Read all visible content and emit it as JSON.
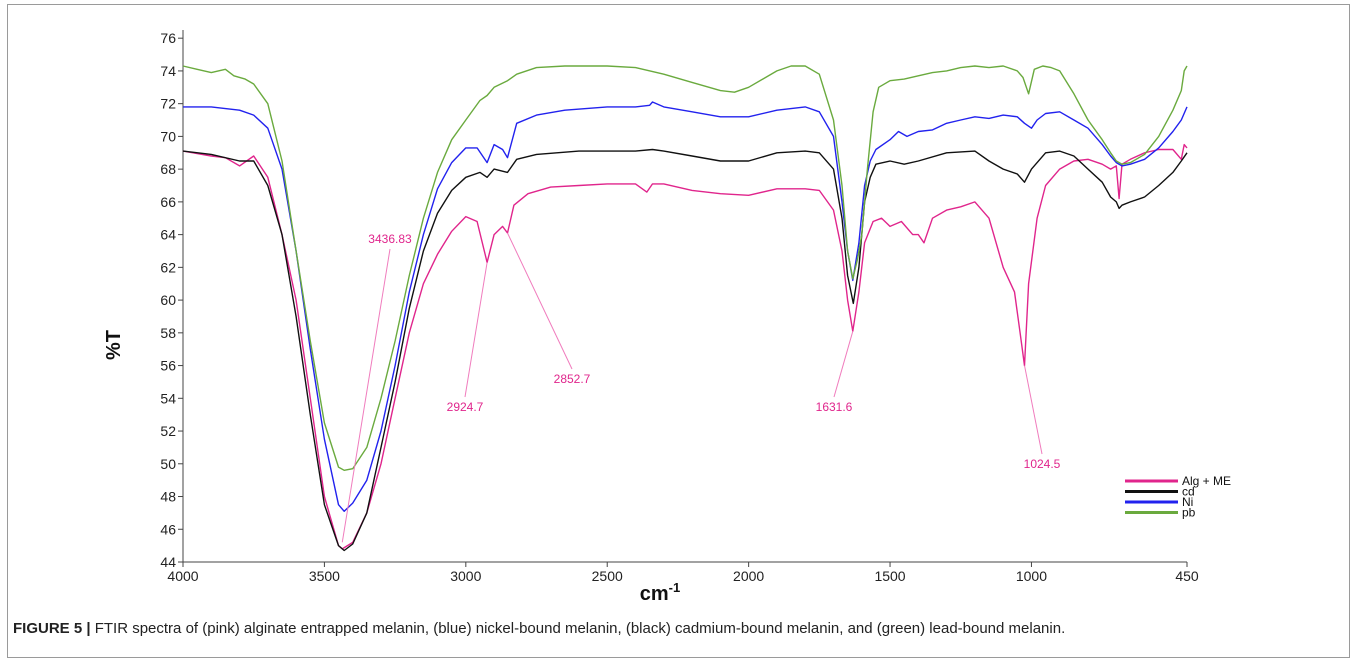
{
  "chart_data": {
    "type": "line",
    "xlabel": "cm",
    "xlabel_sup": "-1",
    "ylabel": "%T",
    "xlim": [
      4000,
      450
    ],
    "ylim": [
      44,
      76.5
    ],
    "x_ticks": [
      4000,
      3500,
      3000,
      2500,
      2000,
      1500,
      1000,
      450
    ],
    "y_ticks": [
      44,
      46,
      48,
      50,
      52,
      54,
      56,
      58,
      60,
      62,
      64,
      66,
      68,
      70,
      72,
      74,
      76
    ],
    "grid": false,
    "legend_position": "bottom-right",
    "series": [
      {
        "name": "Alg + ME",
        "color": "#e0258c",
        "points": [
          [
            4000,
            69.1
          ],
          [
            3900,
            68.8
          ],
          [
            3850,
            68.7
          ],
          [
            3800,
            68.2
          ],
          [
            3750,
            68.8
          ],
          [
            3700,
            67.5
          ],
          [
            3650,
            64
          ],
          [
            3600,
            60
          ],
          [
            3550,
            54
          ],
          [
            3500,
            48
          ],
          [
            3450,
            45
          ],
          [
            3436.83,
            44.8
          ],
          [
            3400,
            45.2
          ],
          [
            3350,
            47
          ],
          [
            3300,
            50
          ],
          [
            3250,
            54
          ],
          [
            3200,
            58
          ],
          [
            3150,
            61
          ],
          [
            3100,
            62.8
          ],
          [
            3050,
            64.2
          ],
          [
            3000,
            65.1
          ],
          [
            2960,
            64.8
          ],
          [
            2924.7,
            62.3
          ],
          [
            2900,
            64
          ],
          [
            2870,
            64.5
          ],
          [
            2852.7,
            64.1
          ],
          [
            2830,
            65.8
          ],
          [
            2780,
            66.5
          ],
          [
            2700,
            66.9
          ],
          [
            2600,
            67
          ],
          [
            2500,
            67.1
          ],
          [
            2400,
            67.1
          ],
          [
            2360,
            66.6
          ],
          [
            2340,
            67.1
          ],
          [
            2300,
            67.1
          ],
          [
            2200,
            66.7
          ],
          [
            2100,
            66.5
          ],
          [
            2000,
            66.4
          ],
          [
            1900,
            66.8
          ],
          [
            1800,
            66.8
          ],
          [
            1750,
            66.7
          ],
          [
            1700,
            65.5
          ],
          [
            1670,
            63
          ],
          [
            1650,
            60
          ],
          [
            1631.6,
            58.1
          ],
          [
            1610,
            60.5
          ],
          [
            1590,
            63.5
          ],
          [
            1560,
            64.8
          ],
          [
            1530,
            65
          ],
          [
            1500,
            64.5
          ],
          [
            1460,
            64.8
          ],
          [
            1420,
            64
          ],
          [
            1400,
            64
          ],
          [
            1380,
            63.5
          ],
          [
            1350,
            65
          ],
          [
            1300,
            65.5
          ],
          [
            1250,
            65.7
          ],
          [
            1200,
            66
          ],
          [
            1150,
            65
          ],
          [
            1100,
            62
          ],
          [
            1060,
            60.5
          ],
          [
            1040,
            58
          ],
          [
            1024.5,
            56
          ],
          [
            1010,
            61
          ],
          [
            980,
            65
          ],
          [
            950,
            67
          ],
          [
            900,
            68
          ],
          [
            850,
            68.5
          ],
          [
            800,
            68.6
          ],
          [
            750,
            68.3
          ],
          [
            720,
            68
          ],
          [
            700,
            68.2
          ],
          [
            690,
            66.2
          ],
          [
            680,
            68.3
          ],
          [
            650,
            68.6
          ],
          [
            600,
            69
          ],
          [
            550,
            69.2
          ],
          [
            500,
            69.2
          ],
          [
            470,
            68.6
          ],
          [
            460,
            69.5
          ],
          [
            450,
            69.3
          ]
        ]
      },
      {
        "name": "cd",
        "color": "#111111",
        "points": [
          [
            4000,
            69.1
          ],
          [
            3900,
            68.9
          ],
          [
            3800,
            68.5
          ],
          [
            3750,
            68.5
          ],
          [
            3700,
            67
          ],
          [
            3650,
            64
          ],
          [
            3600,
            59
          ],
          [
            3550,
            53
          ],
          [
            3500,
            47.5
          ],
          [
            3450,
            45
          ],
          [
            3430,
            44.7
          ],
          [
            3400,
            45.1
          ],
          [
            3350,
            47
          ],
          [
            3300,
            51
          ],
          [
            3250,
            55
          ],
          [
            3200,
            59.5
          ],
          [
            3150,
            63
          ],
          [
            3100,
            65.3
          ],
          [
            3050,
            66.7
          ],
          [
            3000,
            67.5
          ],
          [
            2950,
            67.8
          ],
          [
            2924.7,
            67.5
          ],
          [
            2900,
            68
          ],
          [
            2852.7,
            67.8
          ],
          [
            2820,
            68.6
          ],
          [
            2750,
            68.9
          ],
          [
            2600,
            69.1
          ],
          [
            2500,
            69.1
          ],
          [
            2400,
            69.1
          ],
          [
            2340,
            69.2
          ],
          [
            2300,
            69.1
          ],
          [
            2200,
            68.8
          ],
          [
            2100,
            68.5
          ],
          [
            2000,
            68.5
          ],
          [
            1900,
            69
          ],
          [
            1800,
            69.1
          ],
          [
            1750,
            69
          ],
          [
            1700,
            68
          ],
          [
            1670,
            65
          ],
          [
            1650,
            61.5
          ],
          [
            1630,
            59.8
          ],
          [
            1610,
            62
          ],
          [
            1590,
            66
          ],
          [
            1570,
            67.5
          ],
          [
            1550,
            68.3
          ],
          [
            1500,
            68.5
          ],
          [
            1450,
            68.3
          ],
          [
            1400,
            68.5
          ],
          [
            1300,
            69
          ],
          [
            1200,
            69.1
          ],
          [
            1150,
            68.5
          ],
          [
            1100,
            68
          ],
          [
            1050,
            67.7
          ],
          [
            1024.5,
            67.2
          ],
          [
            1000,
            68
          ],
          [
            950,
            69
          ],
          [
            900,
            69.1
          ],
          [
            850,
            68.8
          ],
          [
            800,
            68
          ],
          [
            750,
            67.2
          ],
          [
            720,
            66.3
          ],
          [
            700,
            66
          ],
          [
            690,
            65.6
          ],
          [
            680,
            65.8
          ],
          [
            650,
            66
          ],
          [
            600,
            66.3
          ],
          [
            550,
            67
          ],
          [
            500,
            67.8
          ],
          [
            470,
            68.5
          ],
          [
            450,
            69
          ]
        ]
      },
      {
        "name": "Ni",
        "color": "#2222ee",
        "points": [
          [
            4000,
            71.8
          ],
          [
            3900,
            71.8
          ],
          [
            3850,
            71.7
          ],
          [
            3800,
            71.6
          ],
          [
            3750,
            71.3
          ],
          [
            3700,
            70.5
          ],
          [
            3650,
            68
          ],
          [
            3600,
            63
          ],
          [
            3550,
            57
          ],
          [
            3500,
            51.5
          ],
          [
            3450,
            47.5
          ],
          [
            3430,
            47.1
          ],
          [
            3400,
            47.6
          ],
          [
            3350,
            49
          ],
          [
            3300,
            52
          ],
          [
            3250,
            56
          ],
          [
            3200,
            60.5
          ],
          [
            3150,
            64
          ],
          [
            3100,
            66.8
          ],
          [
            3050,
            68.4
          ],
          [
            3000,
            69.3
          ],
          [
            2960,
            69.3
          ],
          [
            2924.7,
            68.4
          ],
          [
            2900,
            69.5
          ],
          [
            2870,
            69.2
          ],
          [
            2852.7,
            68.7
          ],
          [
            2820,
            70.8
          ],
          [
            2750,
            71.3
          ],
          [
            2650,
            71.6
          ],
          [
            2500,
            71.8
          ],
          [
            2400,
            71.8
          ],
          [
            2350,
            71.9
          ],
          [
            2340,
            72.1
          ],
          [
            2300,
            71.8
          ],
          [
            2200,
            71.5
          ],
          [
            2100,
            71.2
          ],
          [
            2000,
            71.2
          ],
          [
            1900,
            71.6
          ],
          [
            1800,
            71.8
          ],
          [
            1750,
            71.5
          ],
          [
            1700,
            70
          ],
          [
            1670,
            66
          ],
          [
            1650,
            63
          ],
          [
            1631.6,
            61.2
          ],
          [
            1610,
            63.5
          ],
          [
            1590,
            67
          ],
          [
            1570,
            68.5
          ],
          [
            1550,
            69.2
          ],
          [
            1500,
            69.8
          ],
          [
            1470,
            70.3
          ],
          [
            1440,
            70
          ],
          [
            1400,
            70.3
          ],
          [
            1350,
            70.4
          ],
          [
            1300,
            70.8
          ],
          [
            1250,
            71
          ],
          [
            1200,
            71.2
          ],
          [
            1150,
            71.1
          ],
          [
            1100,
            71.3
          ],
          [
            1050,
            71.2
          ],
          [
            1024.5,
            70.8
          ],
          [
            1000,
            70.5
          ],
          [
            980,
            71
          ],
          [
            950,
            71.4
          ],
          [
            900,
            71.5
          ],
          [
            850,
            71
          ],
          [
            800,
            70.5
          ],
          [
            750,
            69.5
          ],
          [
            720,
            68.8
          ],
          [
            700,
            68.4
          ],
          [
            680,
            68.2
          ],
          [
            650,
            68.3
          ],
          [
            600,
            68.6
          ],
          [
            550,
            69.3
          ],
          [
            500,
            70.3
          ],
          [
            470,
            71
          ],
          [
            450,
            71.8
          ]
        ]
      },
      {
        "name": "pb",
        "color": "#6aaa3e",
        "points": [
          [
            4000,
            74.3
          ],
          [
            3950,
            74.1
          ],
          [
            3900,
            73.9
          ],
          [
            3850,
            74.1
          ],
          [
            3820,
            73.7
          ],
          [
            3780,
            73.5
          ],
          [
            3750,
            73.2
          ],
          [
            3700,
            72
          ],
          [
            3650,
            68.5
          ],
          [
            3600,
            63
          ],
          [
            3550,
            57.5
          ],
          [
            3500,
            52.5
          ],
          [
            3450,
            49.8
          ],
          [
            3430,
            49.6
          ],
          [
            3400,
            49.7
          ],
          [
            3350,
            51
          ],
          [
            3300,
            54
          ],
          [
            3250,
            57.5
          ],
          [
            3200,
            61.5
          ],
          [
            3150,
            65
          ],
          [
            3100,
            67.8
          ],
          [
            3050,
            69.8
          ],
          [
            3000,
            71
          ],
          [
            2950,
            72.2
          ],
          [
            2924.7,
            72.5
          ],
          [
            2900,
            73
          ],
          [
            2852.7,
            73.4
          ],
          [
            2820,
            73.8
          ],
          [
            2750,
            74.2
          ],
          [
            2650,
            74.3
          ],
          [
            2500,
            74.3
          ],
          [
            2400,
            74.2
          ],
          [
            2300,
            73.8
          ],
          [
            2200,
            73.3
          ],
          [
            2100,
            72.8
          ],
          [
            2050,
            72.7
          ],
          [
            2000,
            73
          ],
          [
            1900,
            74
          ],
          [
            1850,
            74.3
          ],
          [
            1800,
            74.3
          ],
          [
            1750,
            73.8
          ],
          [
            1700,
            71
          ],
          [
            1670,
            67
          ],
          [
            1650,
            63
          ],
          [
            1631.6,
            61.3
          ],
          [
            1615,
            62.5
          ],
          [
            1600,
            64
          ],
          [
            1580,
            68
          ],
          [
            1560,
            71.5
          ],
          [
            1540,
            73
          ],
          [
            1500,
            73.4
          ],
          [
            1450,
            73.5
          ],
          [
            1400,
            73.7
          ],
          [
            1350,
            73.9
          ],
          [
            1300,
            74
          ],
          [
            1250,
            74.2
          ],
          [
            1200,
            74.3
          ],
          [
            1150,
            74.2
          ],
          [
            1100,
            74.3
          ],
          [
            1050,
            74
          ],
          [
            1030,
            73.6
          ],
          [
            1010,
            72.6
          ],
          [
            990,
            74.1
          ],
          [
            960,
            74.3
          ],
          [
            930,
            74.2
          ],
          [
            900,
            74
          ],
          [
            850,
            72.6
          ],
          [
            800,
            71
          ],
          [
            750,
            69.8
          ],
          [
            720,
            69
          ],
          [
            700,
            68.5
          ],
          [
            680,
            68.3
          ],
          [
            650,
            68.4
          ],
          [
            600,
            68.9
          ],
          [
            550,
            70
          ],
          [
            500,
            71.6
          ],
          [
            470,
            72.8
          ],
          [
            460,
            74
          ],
          [
            450,
            74.3
          ]
        ]
      }
    ],
    "annotations": [
      {
        "text": "3436.83",
        "x": 3436.83,
        "y": 45.2
      },
      {
        "text": "2924.7",
        "x": 2924.7,
        "y": 62.3
      },
      {
        "text": "2852.7",
        "x": 2852.7,
        "y": 64.1
      },
      {
        "text": "1631.6",
        "x": 1631.6,
        "y": 58.1
      },
      {
        "text": "1024.5",
        "x": 1024.5,
        "y": 56
      }
    ]
  },
  "caption": {
    "label": "FIGURE 5 |",
    "text": " FTIR spectra of (pink) alginate entrapped melanin, (blue) nickel-bound melanin, (black) cadmium-bound melanin, and (green) lead-bound melanin."
  }
}
